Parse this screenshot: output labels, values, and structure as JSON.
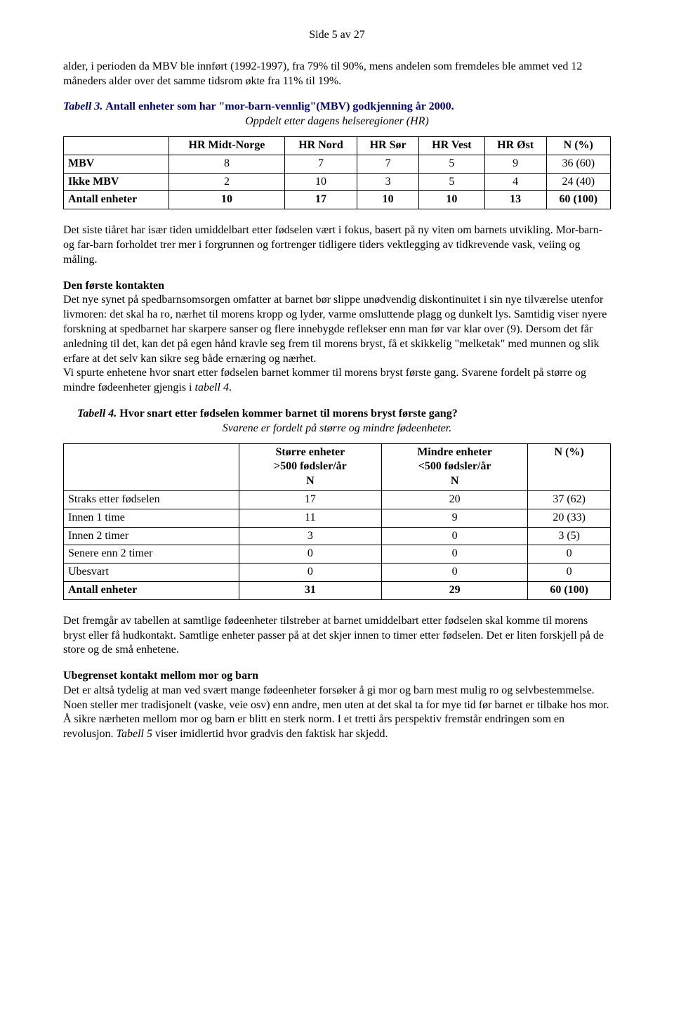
{
  "page_header": "Side 5 av 27",
  "intro_paragraph": "alder, i perioden da MBV ble innført (1992-1997), fra 79% til 90%, mens andelen som fremdeles ble ammet ved 12 måneders alder over det samme tidsrom økte fra 11% til 19%.",
  "table3": {
    "label": "Tabell 3.",
    "title": "Antall enheter som har \"mor-barn-vennlig\"(MBV) godkjenning år 2000.",
    "subtitle": "Oppdelt etter dagens helseregioner (HR)",
    "columns": [
      "",
      "HR Midt-Norge",
      "HR Nord",
      "HR Sør",
      "HR Vest",
      "HR Øst",
      "N (%)"
    ],
    "rows": [
      [
        "MBV",
        "8",
        "7",
        "7",
        "5",
        "9",
        "36  (60)"
      ],
      [
        "Ikke MBV",
        "2",
        "10",
        "3",
        "5",
        "4",
        "24  (40)"
      ],
      [
        "Antall enheter",
        "10",
        "17",
        "10",
        "10",
        "13",
        "60  (100)"
      ]
    ]
  },
  "paragraph2": "Det siste tiåret har især tiden umiddelbart etter fødselen vært i fokus, basert på ny viten om barnets utvikling. Mor-barn- og far-barn forholdet trer mer i forgrunnen og fortrenger tidligere tiders vektlegging av tidkrevende vask, veiing og måling.",
  "section2": {
    "heading": "Den første kontakten",
    "p1": "Det nye synet på spedbarnsomsorgen omfatter at barnet bør slippe unødvendig diskontinuitet i sin nye tilværelse utenfor livmoren: det skal ha ro, nærhet til morens kropp og lyder, varme omsluttende plagg og dunkelt lys. Samtidig viser nyere forskning at spedbarnet har skarpere sanser og flere innebygde reflekser enn man før var klar over (9). Dersom det får anledning til det, kan det på egen hånd kravle seg frem til morens bryst, få et skikkelig \"melketak\" med munnen og slik erfare at det selv kan sikre seg både ernæring og nærhet.",
    "p2_a": "Vi spurte enhetene hvor snart etter fødselen barnet kommer til morens bryst første gang. Svarene fordelt på større og mindre fødeenheter gjengis i ",
    "p2_italic": "tabell 4",
    "p2_b": "."
  },
  "table4": {
    "label": "Tabell 4.",
    "title": "Hvor snart etter fødselen kommer barnet til morens bryst første gang?",
    "subtitle": "Svarene er fordelt på større og mindre fødeenheter.",
    "header": [
      "",
      "Større enheter\n>500 fødsler/år\nN",
      "Mindre enheter\n<500 fødsler/år\nN",
      "N  (%)"
    ],
    "rows": [
      [
        "Straks etter fødselen",
        "17",
        "20",
        "37  (62)"
      ],
      [
        "Innen 1 time",
        "11",
        "9",
        "20  (33)"
      ],
      [
        "Innen 2 timer",
        "3",
        "0",
        "3   (5)"
      ],
      [
        "Senere enn 2 timer",
        "0",
        "0",
        "0"
      ],
      [
        "Ubesvart",
        "0",
        "0",
        "0"
      ],
      [
        "Antall enheter",
        "31",
        "29",
        "60  (100)"
      ]
    ]
  },
  "paragraph3": "Det fremgår av tabellen at samtlige fødeenheter tilstreber at barnet umiddelbart etter fødselen skal komme til morens bryst eller få hudkontakt. Samtlige enheter passer på at det skjer innen to timer etter fødselen. Det er liten forskjell på de store og de små enhetene.",
  "section3": {
    "heading": "Ubegrenset kontakt mellom mor og barn",
    "p_a": "Det er altså tydelig at man ved svært mange fødeenheter forsøker å gi mor og barn mest mulig ro og selvbestemmelse. Noen steller mer tradisjonelt (vaske, veie osv) enn andre, men uten at det skal ta for mye tid før barnet er tilbake hos mor. Å sikre nærheten mellom mor og barn er blitt en sterk norm. I et tretti års perspektiv fremstår endringen som en revolusjon. ",
    "p_italic": "Tabell 5",
    "p_b": " viser imidlertid hvor gradvis den faktisk har skjedd."
  },
  "colors": {
    "title_color": "#000080",
    "text_color": "#000000",
    "background": "#ffffff",
    "border": "#000000"
  }
}
